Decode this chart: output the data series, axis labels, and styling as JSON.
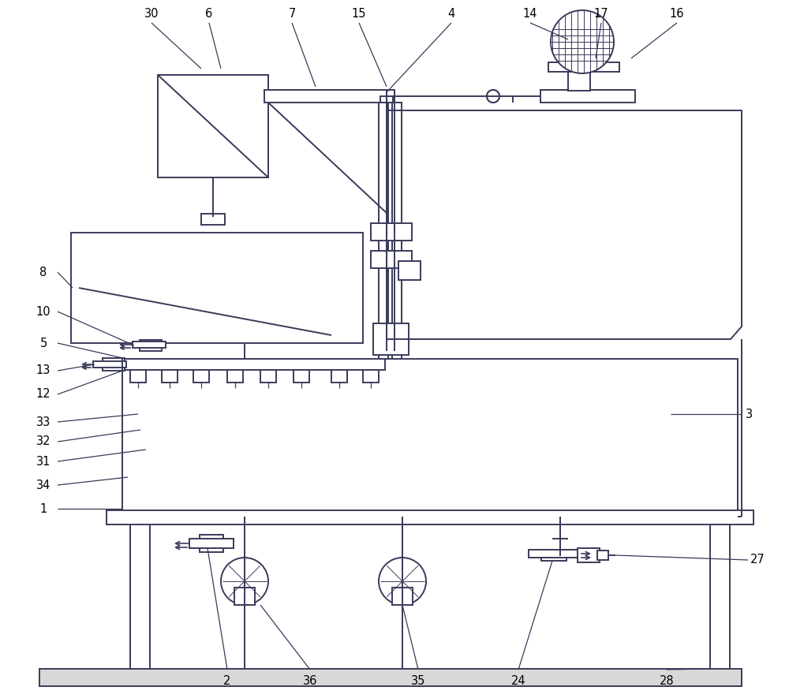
{
  "bg_color": "#ffffff",
  "lc": "#3a3a5a",
  "lw": 1.4,
  "fs": 10.5,
  "figsize": [
    10.0,
    8.85
  ],
  "dpi": 100
}
